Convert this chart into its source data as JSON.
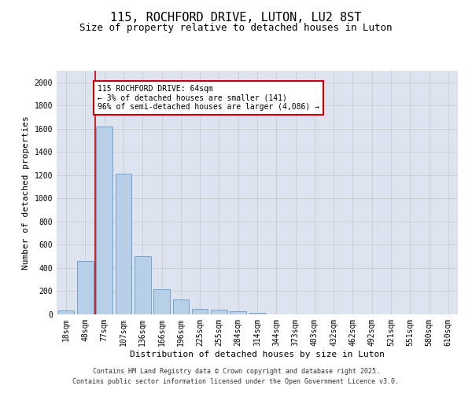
{
  "title_line1": "115, ROCHFORD DRIVE, LUTON, LU2 8ST",
  "title_line2": "Size of property relative to detached houses in Luton",
  "xlabel": "Distribution of detached houses by size in Luton",
  "ylabel": "Number of detached properties",
  "categories": [
    "18sqm",
    "48sqm",
    "77sqm",
    "107sqm",
    "136sqm",
    "166sqm",
    "196sqm",
    "225sqm",
    "255sqm",
    "284sqm",
    "314sqm",
    "344sqm",
    "373sqm",
    "403sqm",
    "432sqm",
    "462sqm",
    "492sqm",
    "521sqm",
    "551sqm",
    "580sqm",
    "610sqm"
  ],
  "values": [
    35,
    460,
    1620,
    1210,
    500,
    220,
    130,
    50,
    40,
    25,
    12,
    0,
    0,
    0,
    0,
    0,
    0,
    0,
    0,
    0,
    0
  ],
  "bar_color": "#b8cfe8",
  "bar_edge_color": "#6699cc",
  "vline_color": "#cc0000",
  "vline_x": 1.5,
  "annotation_text": "115 ROCHFORD DRIVE: 64sqm\n← 3% of detached houses are smaller (141)\n96% of semi-detached houses are larger (4,086) →",
  "annotation_box_color": "#cc0000",
  "ylim": [
    0,
    2100
  ],
  "yticks": [
    0,
    200,
    400,
    600,
    800,
    1000,
    1200,
    1400,
    1600,
    1800,
    2000
  ],
  "grid_color": "#cccccc",
  "bg_color": "#dde4f0",
  "footer_line1": "Contains HM Land Registry data © Crown copyright and database right 2025.",
  "footer_line2": "Contains public sector information licensed under the Open Government Licence v3.0.",
  "title_fontsize": 11,
  "subtitle_fontsize": 9,
  "axis_label_fontsize": 8,
  "tick_fontsize": 7,
  "annotation_fontsize": 7,
  "footer_fontsize": 6
}
